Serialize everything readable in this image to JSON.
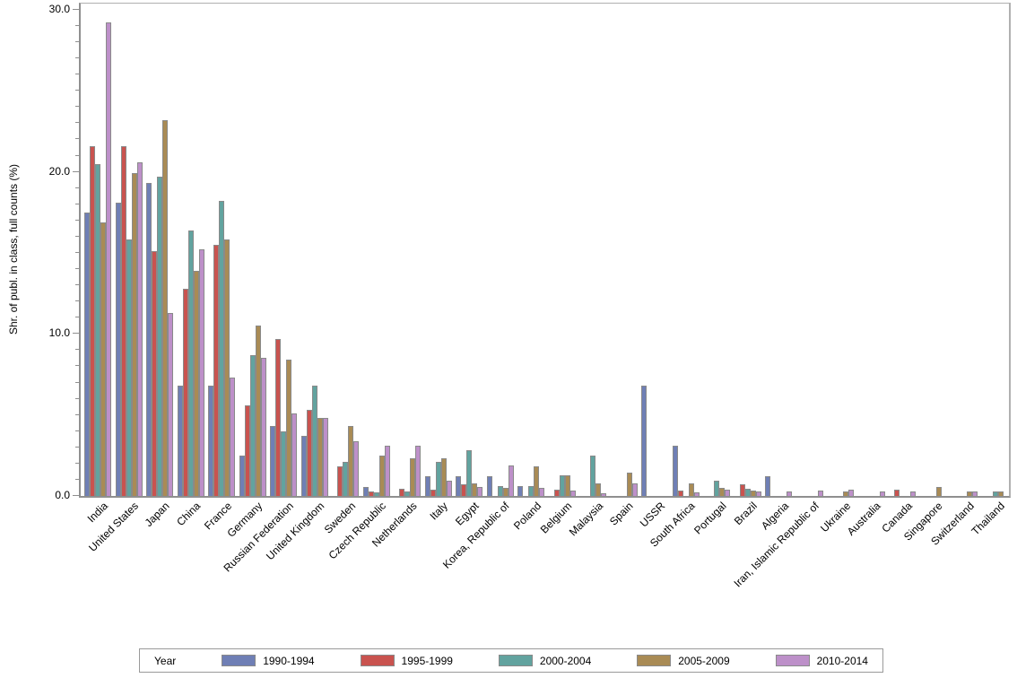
{
  "chart_data": {
    "type": "bar",
    "title": "",
    "xlabel": "",
    "ylabel": "Shr. of publ. in class, full counts (%)",
    "ylim": [
      0,
      30
    ],
    "grid": false,
    "y_major_ticks": [
      {
        "value": 0,
        "label": "0.0"
      },
      {
        "value": 10,
        "label": "10.0"
      },
      {
        "value": 20,
        "label": "20.0"
      },
      {
        "value": 30,
        "label": "30.0"
      }
    ],
    "y_minor_step": 1,
    "legend_title": "Year",
    "legend_position": "bottom",
    "categories": [
      "India",
      "United States",
      "Japan",
      "China",
      "France",
      "Germany",
      "Russian Federation",
      "United Kingdom",
      "Sweden",
      "Czech Republic",
      "Netherlands",
      "Italy",
      "Egypt",
      "Korea, Republic of",
      "Poland",
      "Belgium",
      "Malaysia",
      "Spain",
      "USSR",
      "South Africa",
      "Portugal",
      "Brazil",
      "Algeria",
      "Iran, Islamic Republic of",
      "Ukraine",
      "Australia",
      "Canada",
      "Singapore",
      "Switzerland",
      "Thailand"
    ],
    "series": [
      {
        "name": "1990-1994",
        "color": "#6F7FB5",
        "values": [
          17.5,
          18.1,
          19.3,
          6.8,
          6.8,
          2.5,
          4.3,
          3.7,
          0,
          0.55,
          0,
          1.2,
          1.2,
          1.2,
          0.6,
          0,
          0,
          0,
          6.8,
          3.1,
          0,
          0,
          1.2,
          0,
          0,
          0,
          0,
          0,
          0,
          0
        ]
      },
      {
        "name": "1995-1999",
        "color": "#C9534F",
        "values": [
          21.6,
          21.6,
          15.1,
          12.8,
          15.5,
          5.6,
          9.7,
          5.3,
          1.8,
          0.3,
          0.45,
          0.4,
          0.7,
          0,
          0,
          0.4,
          0,
          0,
          0,
          0.35,
          0,
          0.7,
          0,
          0,
          0,
          0,
          0.4,
          0,
          0,
          0
        ]
      },
      {
        "name": "2000-2004",
        "color": "#62A39F",
        "values": [
          20.5,
          15.8,
          19.7,
          16.4,
          18.2,
          8.7,
          4.0,
          6.8,
          2.1,
          0.2,
          0.3,
          2.1,
          2.8,
          0.6,
          0.6,
          1.25,
          2.5,
          0,
          0,
          0,
          0.95,
          0.45,
          0,
          0,
          0,
          0,
          0,
          0,
          0,
          0.3
        ]
      },
      {
        "name": "2005-2009",
        "color": "#A98B55",
        "values": [
          16.9,
          19.9,
          23.2,
          13.9,
          15.8,
          10.5,
          8.4,
          4.8,
          4.3,
          2.5,
          2.3,
          2.3,
          0.8,
          0.5,
          1.8,
          1.3,
          0.75,
          1.45,
          0,
          0.75,
          0.5,
          0.35,
          0,
          0,
          0.3,
          0,
          0,
          0.55,
          0.3,
          0.3
        ]
      },
      {
        "name": "2010-2014",
        "color": "#BD90C9",
        "values": [
          29.2,
          20.6,
          11.3,
          15.2,
          7.3,
          8.5,
          5.1,
          4.8,
          3.4,
          3.1,
          3.1,
          0.95,
          0.55,
          1.9,
          0.5,
          0.35,
          0.15,
          0.75,
          0,
          0.2,
          0.4,
          0.25,
          0.25,
          0.35,
          0.4,
          0.3,
          0.25,
          0,
          0.25,
          0
        ]
      }
    ]
  }
}
